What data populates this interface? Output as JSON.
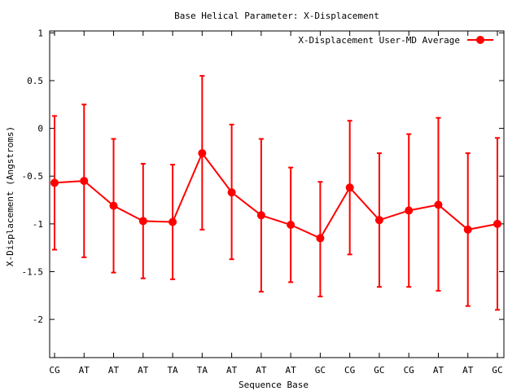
{
  "chart_data": {
    "type": "line",
    "title": "Base  Helical Parameter: X-Displacement",
    "xlabel": "Sequence Base",
    "ylabel": "X-Displacement (Angstroms)",
    "ylim": [
      -2.4,
      1.02
    ],
    "yticks": [
      1,
      0.5,
      0,
      -0.5,
      -1,
      -1.5,
      -2
    ],
    "ytick_labels": [
      "1",
      "0.5",
      "0",
      "-0.5",
      "-1",
      "-1.5",
      "-2"
    ],
    "categories": [
      "CG",
      "AT",
      "AT",
      "AT",
      "TA",
      "TA",
      "AT",
      "AT",
      "AT",
      "GC",
      "CG",
      "GC",
      "CG",
      "AT",
      "AT",
      "GC"
    ],
    "legend_position": "top-right",
    "series": [
      {
        "name": "X-Displacement User-MD Average",
        "color": "#ff0000",
        "values": [
          -0.57,
          -0.55,
          -0.81,
          -0.97,
          -0.98,
          -0.26,
          -0.67,
          -0.91,
          -1.01,
          -1.15,
          -0.62,
          -0.96,
          -0.86,
          -0.8,
          -1.06,
          -1.0
        ],
        "error_low": [
          -1.27,
          -1.35,
          -1.51,
          -1.57,
          -1.58,
          -1.06,
          -1.37,
          -1.71,
          -1.61,
          -1.76,
          -1.32,
          -1.66,
          -1.66,
          -1.7,
          -1.86,
          -1.9
        ],
        "error_high": [
          0.13,
          0.25,
          -0.11,
          -0.37,
          -0.38,
          0.55,
          0.04,
          -0.11,
          -0.41,
          -0.56,
          0.08,
          -0.26,
          -0.06,
          0.11,
          -0.26,
          -0.1
        ]
      }
    ]
  }
}
